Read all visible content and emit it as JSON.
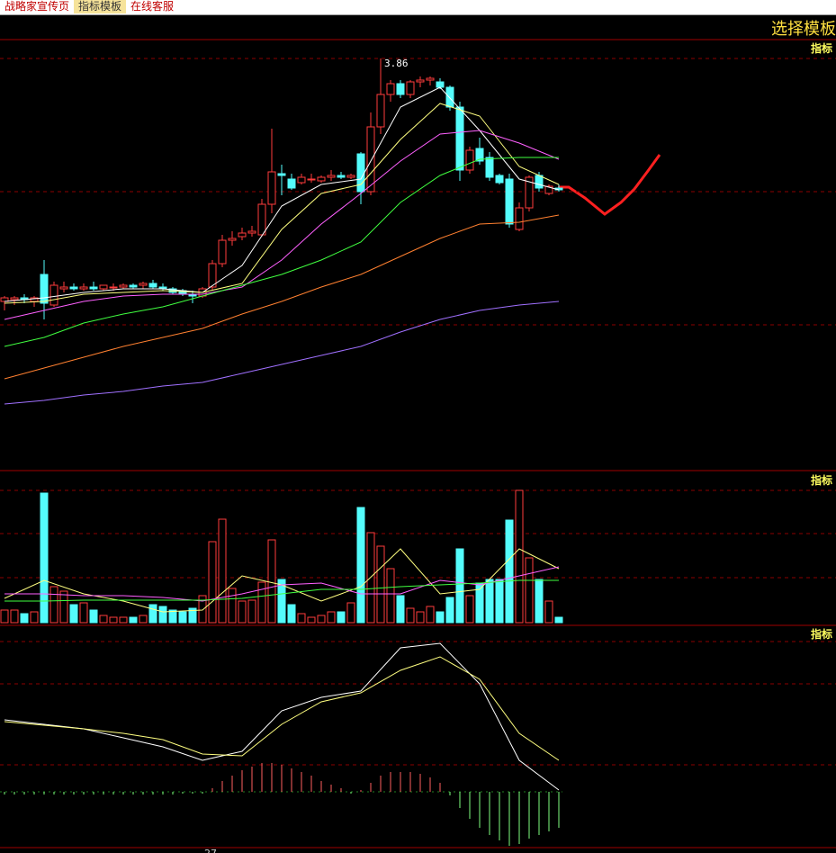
{
  "tabs": [
    "战略家宣传页",
    "指标模板",
    "在线客服"
  ],
  "template_button": "选择模板",
  "indicator_labels": [
    "指标",
    "指标",
    "指标"
  ],
  "axis_fragment": "27",
  "kline": {
    "high_label": "3.86",
    "ylim": [
      1.57,
      3.96
    ],
    "grid": [
      3.86,
      3.12,
      2.38
    ],
    "up_color": "#ff3c3c",
    "down_color": "#54fcfc",
    "candles": [
      [
        2.51,
        2.54,
        2.46,
        2.53
      ],
      [
        2.52,
        2.54,
        2.49,
        2.53
      ],
      [
        2.53,
        2.55,
        2.5,
        2.52
      ],
      [
        2.51,
        2.54,
        2.48,
        2.53
      ],
      [
        2.66,
        2.74,
        2.41,
        2.5
      ],
      [
        2.49,
        2.62,
        2.48,
        2.6
      ],
      [
        2.58,
        2.62,
        2.56,
        2.59
      ],
      [
        2.59,
        2.61,
        2.57,
        2.58
      ],
      [
        2.58,
        2.61,
        2.57,
        2.59
      ],
      [
        2.59,
        2.62,
        2.57,
        2.58
      ],
      [
        2.58,
        2.6,
        2.57,
        2.6
      ],
      [
        2.59,
        2.61,
        2.57,
        2.59
      ],
      [
        2.59,
        2.61,
        2.58,
        2.6
      ],
      [
        2.6,
        2.61,
        2.58,
        2.59
      ],
      [
        2.6,
        2.62,
        2.58,
        2.61
      ],
      [
        2.61,
        2.63,
        2.58,
        2.59
      ],
      [
        2.59,
        2.61,
        2.57,
        2.58
      ],
      [
        2.58,
        2.59,
        2.55,
        2.56
      ],
      [
        2.57,
        2.58,
        2.54,
        2.55
      ],
      [
        2.55,
        2.57,
        2.5,
        2.54
      ],
      [
        2.54,
        2.59,
        2.53,
        2.58
      ],
      [
        2.59,
        2.74,
        2.57,
        2.72
      ],
      [
        2.72,
        2.88,
        2.7,
        2.85
      ],
      [
        2.85,
        2.9,
        2.82,
        2.86
      ],
      [
        2.87,
        2.92,
        2.85,
        2.89
      ],
      [
        2.89,
        2.93,
        2.87,
        2.9
      ],
      [
        2.88,
        3.08,
        2.87,
        3.05
      ],
      [
        3.05,
        3.47,
        3.0,
        3.23
      ],
      [
        3.22,
        3.27,
        3.1,
        3.21
      ],
      [
        3.19,
        3.22,
        3.13,
        3.14
      ],
      [
        3.17,
        3.22,
        3.16,
        3.2
      ],
      [
        3.19,
        3.22,
        3.17,
        3.19
      ],
      [
        3.18,
        3.21,
        3.17,
        3.2
      ],
      [
        3.2,
        3.24,
        3.18,
        3.21
      ],
      [
        3.21,
        3.23,
        3.19,
        3.2
      ],
      [
        3.2,
        3.22,
        3.19,
        3.21
      ],
      [
        3.33,
        3.34,
        3.05,
        3.12
      ],
      [
        3.12,
        3.56,
        3.1,
        3.48
      ],
      [
        3.48,
        3.86,
        3.44,
        3.66
      ],
      [
        3.66,
        3.74,
        3.62,
        3.72
      ],
      [
        3.72,
        3.74,
        3.64,
        3.66
      ],
      [
        3.66,
        3.74,
        3.64,
        3.73
      ],
      [
        3.73,
        3.76,
        3.7,
        3.74
      ],
      [
        3.74,
        3.76,
        3.71,
        3.75
      ],
      [
        3.73,
        3.75,
        3.69,
        3.7
      ],
      [
        3.7,
        3.71,
        3.57,
        3.59
      ],
      [
        3.59,
        3.62,
        3.18,
        3.24
      ],
      [
        3.24,
        3.37,
        3.22,
        3.35
      ],
      [
        3.36,
        3.42,
        3.27,
        3.29
      ],
      [
        3.31,
        3.34,
        3.18,
        3.2
      ],
      [
        3.21,
        3.22,
        3.16,
        3.17
      ],
      [
        3.19,
        3.22,
        2.92,
        2.94
      ],
      [
        2.91,
        3.06,
        2.9,
        3.03
      ],
      [
        3.03,
        3.21,
        3.01,
        3.2
      ],
      [
        3.21,
        3.23,
        3.12,
        3.14
      ],
      [
        3.11,
        3.16,
        3.1,
        3.15
      ],
      [
        3.14,
        3.16,
        3.12,
        3.13
      ]
    ],
    "line_x": [
      0,
      4,
      8,
      12,
      16,
      20,
      24,
      28,
      32,
      36,
      40,
      44,
      48,
      52,
      56
    ],
    "lines": [
      {
        "color": "#ffffff",
        "values": [
          2.51,
          2.53,
          2.56,
          2.58,
          2.58,
          2.56,
          2.71,
          3.04,
          3.16,
          3.19,
          3.59,
          3.7,
          3.46,
          3.19,
          3.13
        ]
      },
      {
        "color": "#ffff80",
        "values": [
          2.5,
          2.51,
          2.55,
          2.56,
          2.57,
          2.56,
          2.61,
          2.91,
          3.11,
          3.16,
          3.41,
          3.61,
          3.54,
          3.26,
          3.16
        ]
      },
      {
        "color": "#ff60ff",
        "values": [
          2.41,
          2.46,
          2.51,
          2.54,
          2.55,
          2.55,
          2.59,
          2.74,
          2.94,
          3.11,
          3.29,
          3.44,
          3.46,
          3.39,
          3.3
        ]
      },
      {
        "color": "#40ff40",
        "values": [
          2.26,
          2.31,
          2.39,
          2.44,
          2.48,
          2.54,
          2.6,
          2.66,
          2.74,
          2.84,
          3.06,
          3.21,
          3.3,
          3.31,
          3.31
        ]
      },
      {
        "color": "#ff8030",
        "values": [
          2.08,
          2.14,
          2.2,
          2.26,
          2.31,
          2.36,
          2.44,
          2.51,
          2.59,
          2.66,
          2.76,
          2.86,
          2.94,
          2.95,
          2.99
        ]
      },
      {
        "color": "#a070ff",
        "values": [
          1.94,
          1.96,
          1.99,
          2.01,
          2.04,
          2.06,
          2.11,
          2.16,
          2.21,
          2.26,
          2.34,
          2.41,
          2.46,
          2.49,
          2.51
        ]
      }
    ]
  },
  "volume": {
    "ylim": [
      0,
      170
    ],
    "grid": [
      147,
      99,
      50
    ],
    "values": [
      14,
      14,
      10,
      12,
      144,
      40,
      35,
      20,
      22,
      14,
      8,
      6,
      6,
      6,
      8,
      20,
      18,
      14,
      12,
      16,
      30,
      90,
      115,
      38,
      24,
      25,
      45,
      92,
      48,
      20,
      10,
      6,
      8,
      12,
      12,
      22,
      128,
      100,
      85,
      60,
      30,
      16,
      12,
      18,
      12,
      28,
      82,
      30,
      44,
      48,
      48,
      114,
      147,
      72,
      48,
      24,
      6
    ],
    "line_x": [
      0,
      4,
      8,
      12,
      16,
      20,
      24,
      28,
      32,
      36,
      40,
      44,
      48,
      52,
      56
    ],
    "lines": [
      {
        "color": "#ffff80",
        "values": [
          27,
          47,
          32,
          24,
          12,
          14,
          52,
          42,
          24,
          40,
          82,
          32,
          37,
          82,
          60
        ]
      },
      {
        "color": "#ff60ff",
        "values": [
          32,
          32,
          30,
          30,
          28,
          24,
          32,
          42,
          44,
          32,
          32,
          47,
          42,
          52,
          62
        ]
      },
      {
        "color": "#40ff40",
        "values": [
          24,
          24,
          25,
          25,
          25,
          25,
          27,
          32,
          37,
          37,
          40,
          42,
          44,
          47,
          47
        ]
      }
    ]
  },
  "macd": {
    "ylim": [
      -0.062,
      0.185
    ],
    "grid": [
      0.167,
      0.12,
      0.03
    ],
    "up_color": "#ff6060",
    "down_color": "#80ff80",
    "histogram": [
      -0.003,
      -0.003,
      -0.003,
      -0.003,
      -0.003,
      -0.003,
      -0.003,
      -0.003,
      -0.003,
      -0.003,
      -0.003,
      -0.003,
      -0.003,
      -0.003,
      -0.003,
      -0.003,
      -0.003,
      -0.003,
      -0.002,
      -0.002,
      -0.002,
      0.004,
      0.012,
      0.018,
      0.024,
      0.028,
      0.032,
      0.032,
      0.03,
      0.026,
      0.022,
      0.018,
      0.012,
      0.008,
      0.004,
      -0.002,
      0.002,
      0.01,
      0.018,
      0.022,
      0.022,
      0.022,
      0.02,
      0.016,
      0.01,
      -0.004,
      -0.018,
      -0.03,
      -0.04,
      -0.048,
      -0.054,
      -0.06,
      -0.058,
      -0.052,
      -0.048,
      -0.044,
      -0.04
    ],
    "line_x": [
      0,
      4,
      8,
      12,
      16,
      20,
      24,
      28,
      32,
      36,
      40,
      44,
      48,
      52,
      56
    ],
    "lines": [
      {
        "color": "#ffffff",
        "values": [
          0.08,
          0.075,
          0.07,
          0.06,
          0.05,
          0.035,
          0.045,
          0.09,
          0.105,
          0.112,
          0.16,
          0.165,
          0.12,
          0.035,
          0.002
        ]
      },
      {
        "color": "#ffff80",
        "values": [
          0.078,
          0.074,
          0.07,
          0.065,
          0.058,
          0.042,
          0.04,
          0.075,
          0.1,
          0.11,
          0.135,
          0.15,
          0.125,
          0.065,
          0.035
        ]
      }
    ]
  }
}
